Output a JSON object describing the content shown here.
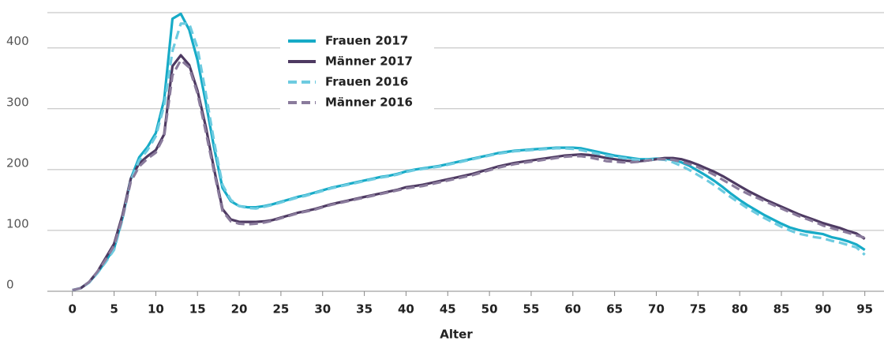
{
  "chart_data": {
    "type": "line",
    "x": [
      0,
      1,
      2,
      3,
      4,
      5,
      6,
      7,
      8,
      9,
      10,
      11,
      12,
      13,
      14,
      15,
      16,
      17,
      18,
      19,
      20,
      21,
      22,
      23,
      24,
      25,
      26,
      27,
      28,
      29,
      30,
      31,
      32,
      33,
      34,
      35,
      36,
      37,
      38,
      39,
      40,
      41,
      42,
      43,
      44,
      45,
      46,
      47,
      48,
      49,
      50,
      51,
      52,
      53,
      54,
      55,
      56,
      57,
      58,
      59,
      60,
      61,
      62,
      63,
      64,
      65,
      66,
      67,
      68,
      69,
      70,
      71,
      72,
      73,
      74,
      75,
      76,
      77,
      78,
      79,
      80,
      81,
      82,
      83,
      84,
      85,
      86,
      87,
      88,
      89,
      90,
      91,
      92,
      93,
      94,
      95
    ],
    "xlabel": "Alter",
    "xlim": [
      -3,
      97.3
    ],
    "xticks": [
      0,
      5,
      10,
      15,
      20,
      25,
      30,
      35,
      40,
      45,
      50,
      55,
      60,
      65,
      70,
      75,
      80,
      85,
      90,
      95
    ],
    "ylim": [
      0,
      458
    ],
    "yticks": [
      0,
      100,
      200,
      300,
      400
    ],
    "grid": true,
    "series": [
      {
        "name": "Frauen 2017",
        "color": "#17abc7",
        "dashed": false,
        "values": [
          2,
          5,
          15,
          30,
          50,
          70,
          120,
          185,
          220,
          237,
          260,
          315,
          448,
          456,
          430,
          380,
          310,
          235,
          170,
          148,
          140,
          138,
          138,
          140,
          143,
          147,
          151,
          155,
          158,
          162,
          166,
          170,
          173,
          176,
          179,
          182,
          185,
          188,
          190,
          193,
          197,
          200,
          202,
          204,
          206,
          209,
          212,
          215,
          218,
          221,
          224,
          227,
          229,
          231,
          232,
          233,
          234,
          235,
          236,
          236,
          236,
          235,
          232,
          229,
          226,
          223,
          221,
          219,
          217,
          217,
          218,
          218,
          216,
          212,
          206,
          198,
          190,
          181,
          171,
          160,
          150,
          141,
          133,
          125,
          118,
          111,
          105,
          101,
          98,
          96,
          94,
          89,
          86,
          82,
          77,
          68
        ]
      },
      {
        "name": "Männer 2017",
        "color": "#4e3a62",
        "dashed": false,
        "values": [
          2,
          5,
          15,
          32,
          55,
          78,
          125,
          185,
          210,
          222,
          232,
          258,
          370,
          388,
          372,
          330,
          270,
          200,
          135,
          118,
          114,
          114,
          114,
          115,
          117,
          121,
          125,
          129,
          132,
          135,
          139,
          143,
          146,
          149,
          152,
          155,
          158,
          161,
          164,
          167,
          171,
          173,
          175,
          178,
          181,
          184,
          187,
          190,
          193,
          197,
          201,
          205,
          208,
          211,
          213,
          215,
          217,
          219,
          221,
          223,
          224,
          225,
          224,
          222,
          219,
          217,
          215,
          214,
          214,
          215,
          217,
          219,
          219,
          217,
          213,
          208,
          202,
          196,
          189,
          181,
          173,
          165,
          158,
          151,
          145,
          139,
          133,
          127,
          122,
          117,
          112,
          108,
          104,
          99,
          95,
          86
        ]
      },
      {
        "name": "Frauen 2016",
        "color": "#6dcbe0",
        "dashed": true,
        "values": [
          2,
          5,
          14,
          30,
          48,
          68,
          118,
          182,
          215,
          232,
          255,
          305,
          395,
          440,
          440,
          400,
          325,
          245,
          175,
          150,
          140,
          137,
          136,
          139,
          142,
          146,
          150,
          154,
          157,
          161,
          165,
          169,
          172,
          175,
          178,
          181,
          184,
          187,
          189,
          192,
          196,
          199,
          201,
          203,
          205,
          208,
          211,
          214,
          217,
          220,
          223,
          226,
          228,
          230,
          231,
          232,
          233,
          234,
          235,
          235,
          234,
          232,
          229,
          226,
          223,
          221,
          219,
          217,
          216,
          216,
          217,
          216,
          212,
          206,
          199,
          191,
          183,
          174,
          164,
          154,
          145,
          136,
          128,
          120,
          113,
          106,
          100,
          95,
          92,
          89,
          87,
          83,
          80,
          76,
          72,
          60
        ]
      },
      {
        "name": "Männer 2016",
        "color": "#8a7b9c",
        "dashed": true,
        "values": [
          2,
          5,
          15,
          32,
          52,
          75,
          120,
          180,
          205,
          218,
          228,
          255,
          355,
          380,
          368,
          325,
          262,
          195,
          132,
          115,
          111,
          110,
          111,
          113,
          116,
          120,
          124,
          128,
          131,
          134,
          138,
          142,
          145,
          148,
          151,
          154,
          157,
          160,
          163,
          166,
          169,
          171,
          173,
          176,
          179,
          182,
          185,
          188,
          191,
          195,
          199,
          203,
          206,
          209,
          211,
          213,
          215,
          217,
          219,
          221,
          222,
          222,
          220,
          217,
          214,
          213,
          212,
          212,
          213,
          215,
          217,
          217,
          216,
          213,
          209,
          204,
          198,
          191,
          183,
          175,
          167,
          160,
          154,
          148,
          142,
          136,
          130,
          124,
          119,
          114,
          108,
          104,
          100,
          96,
          92,
          88
        ]
      }
    ]
  }
}
